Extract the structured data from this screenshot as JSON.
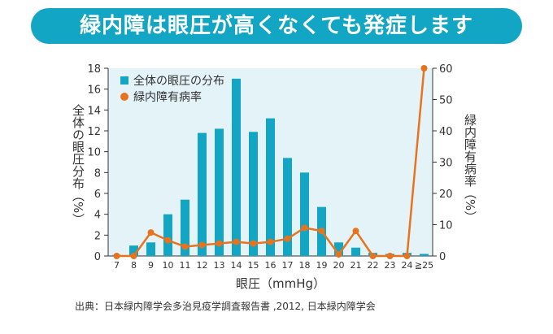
{
  "title": "緑内障は眼圧が高くなくても発症します",
  "source": "出典：日本緑内障学会多治見疫学調査報告書 ,2012, 日本緑内障学会",
  "chart_data": {
    "type": "bar+line",
    "categories": [
      "7",
      "8",
      "9",
      "10",
      "11",
      "12",
      "13",
      "14",
      "15",
      "16",
      "17",
      "18",
      "19",
      "20",
      "21",
      "22",
      "23",
      "24",
      "≧25"
    ],
    "series": [
      {
        "name": "全体の眼圧の分布",
        "type": "bar",
        "axis": "left",
        "color": "#12a6c4",
        "values": [
          0.1,
          1.0,
          1.3,
          4.0,
          5.4,
          11.8,
          12.2,
          17.0,
          11.9,
          13.2,
          9.4,
          8.0,
          4.7,
          1.3,
          0.8,
          0.3,
          0.2,
          0.3,
          0.2
        ]
      },
      {
        "name": "緑内障有病率",
        "type": "line",
        "axis": "right",
        "color": "#e8731e",
        "values": [
          0,
          0,
          7.5,
          5,
          3,
          3.5,
          4,
          4.5,
          4,
          4.5,
          5.5,
          9,
          8,
          0.5,
          8,
          0,
          0,
          0,
          60
        ]
      }
    ],
    "xlabel": "眼圧（mmHg）",
    "ylabel": "全体の眼圧分布（%）",
    "y2label": "緑内障有病率（%）",
    "ylim": [
      0,
      18
    ],
    "yticks": [
      0,
      2,
      4,
      6,
      8,
      10,
      12,
      14,
      16,
      18
    ],
    "y2lim": [
      0,
      60
    ],
    "y2ticks": [
      0,
      10,
      20,
      30,
      40,
      50,
      60
    ],
    "legend": "top-left",
    "plot_background": "#e3f3f8"
  }
}
